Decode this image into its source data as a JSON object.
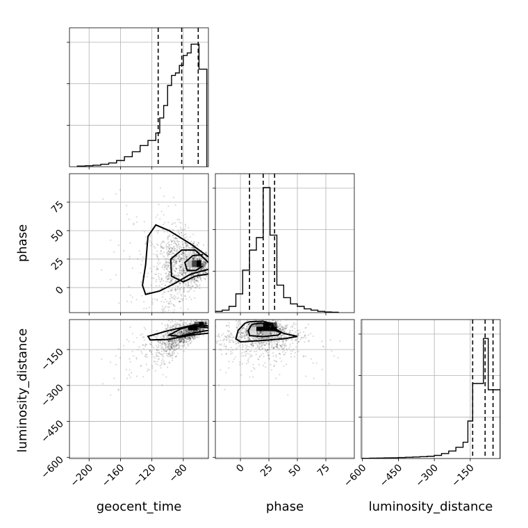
{
  "chart_data": {
    "type": "scatter",
    "parameters": [
      {
        "key": "geocent_time",
        "label": "geocent_time",
        "range": [
          -225,
          -48
        ],
        "ticks": [
          -200,
          -160,
          -120,
          -80
        ]
      },
      {
        "key": "phase",
        "label": "phase",
        "range": [
          -22,
          100
        ],
        "ticks": [
          0,
          25,
          50,
          75
        ]
      },
      {
        "key": "luminosity_distance",
        "label": "luminosity_distance",
        "range": [
          -605,
          -25
        ],
        "ticks": [
          -600,
          -450,
          -300,
          -150
        ]
      }
    ],
    "grid": true,
    "histograms": [
      {
        "param": "geocent_time",
        "bin_edges": [
          -215,
          -205,
          -195,
          -185,
          -175,
          -165,
          -155,
          -145,
          -135,
          -125,
          -115,
          -110,
          -105,
          -100,
          -95,
          -90,
          -85,
          -80,
          -75,
          -70,
          -65,
          -60,
          -55,
          -50
        ],
        "counts": [
          0.005,
          0.008,
          0.012,
          0.02,
          0.03,
          0.05,
          0.08,
          0.12,
          0.17,
          0.21,
          0.27,
          0.39,
          0.49,
          0.65,
          0.73,
          0.75,
          0.81,
          0.89,
          0.91,
          0.98,
          0.98,
          0.78,
          0.78
        ],
        "quantiles": [
          -112,
          -82,
          -61
        ]
      },
      {
        "param": "phase",
        "bin_edges": [
          -22,
          -16,
          -10,
          -4,
          2,
          8,
          14,
          20,
          26,
          32,
          38,
          44,
          50,
          56,
          62,
          68,
          74,
          80,
          86
        ],
        "counts": [
          0.01,
          0.02,
          0.05,
          0.15,
          0.34,
          0.5,
          0.6,
          1.0,
          0.62,
          0.22,
          0.12,
          0.07,
          0.05,
          0.03,
          0.02,
          0.01,
          0.005,
          0.003
        ],
        "quantiles": [
          8,
          20,
          30
        ]
      },
      {
        "param": "luminosity_distance",
        "bin_edges": [
          -600,
          -570,
          -540,
          -510,
          -480,
          -450,
          -420,
          -390,
          -360,
          -330,
          -300,
          -270,
          -240,
          -210,
          -180,
          -160,
          -140,
          -115,
          -95,
          -75,
          -55,
          -25
        ],
        "counts": [
          0.002,
          0.003,
          0.004,
          0.005,
          0.006,
          0.008,
          0.01,
          0.012,
          0.015,
          0.018,
          0.025,
          0.04,
          0.06,
          0.09,
          0.13,
          0.3,
          0.6,
          0.6,
          0.96,
          0.55,
          0.55
        ],
        "quantiles": [
          -140,
          -88,
          -55
        ]
      }
    ],
    "joint_panels": [
      {
        "x": "geocent_time",
        "y": "phase"
      },
      {
        "x": "geocent_time",
        "y": "luminosity_distance"
      },
      {
        "x": "phase",
        "y": "luminosity_distance"
      }
    ]
  }
}
